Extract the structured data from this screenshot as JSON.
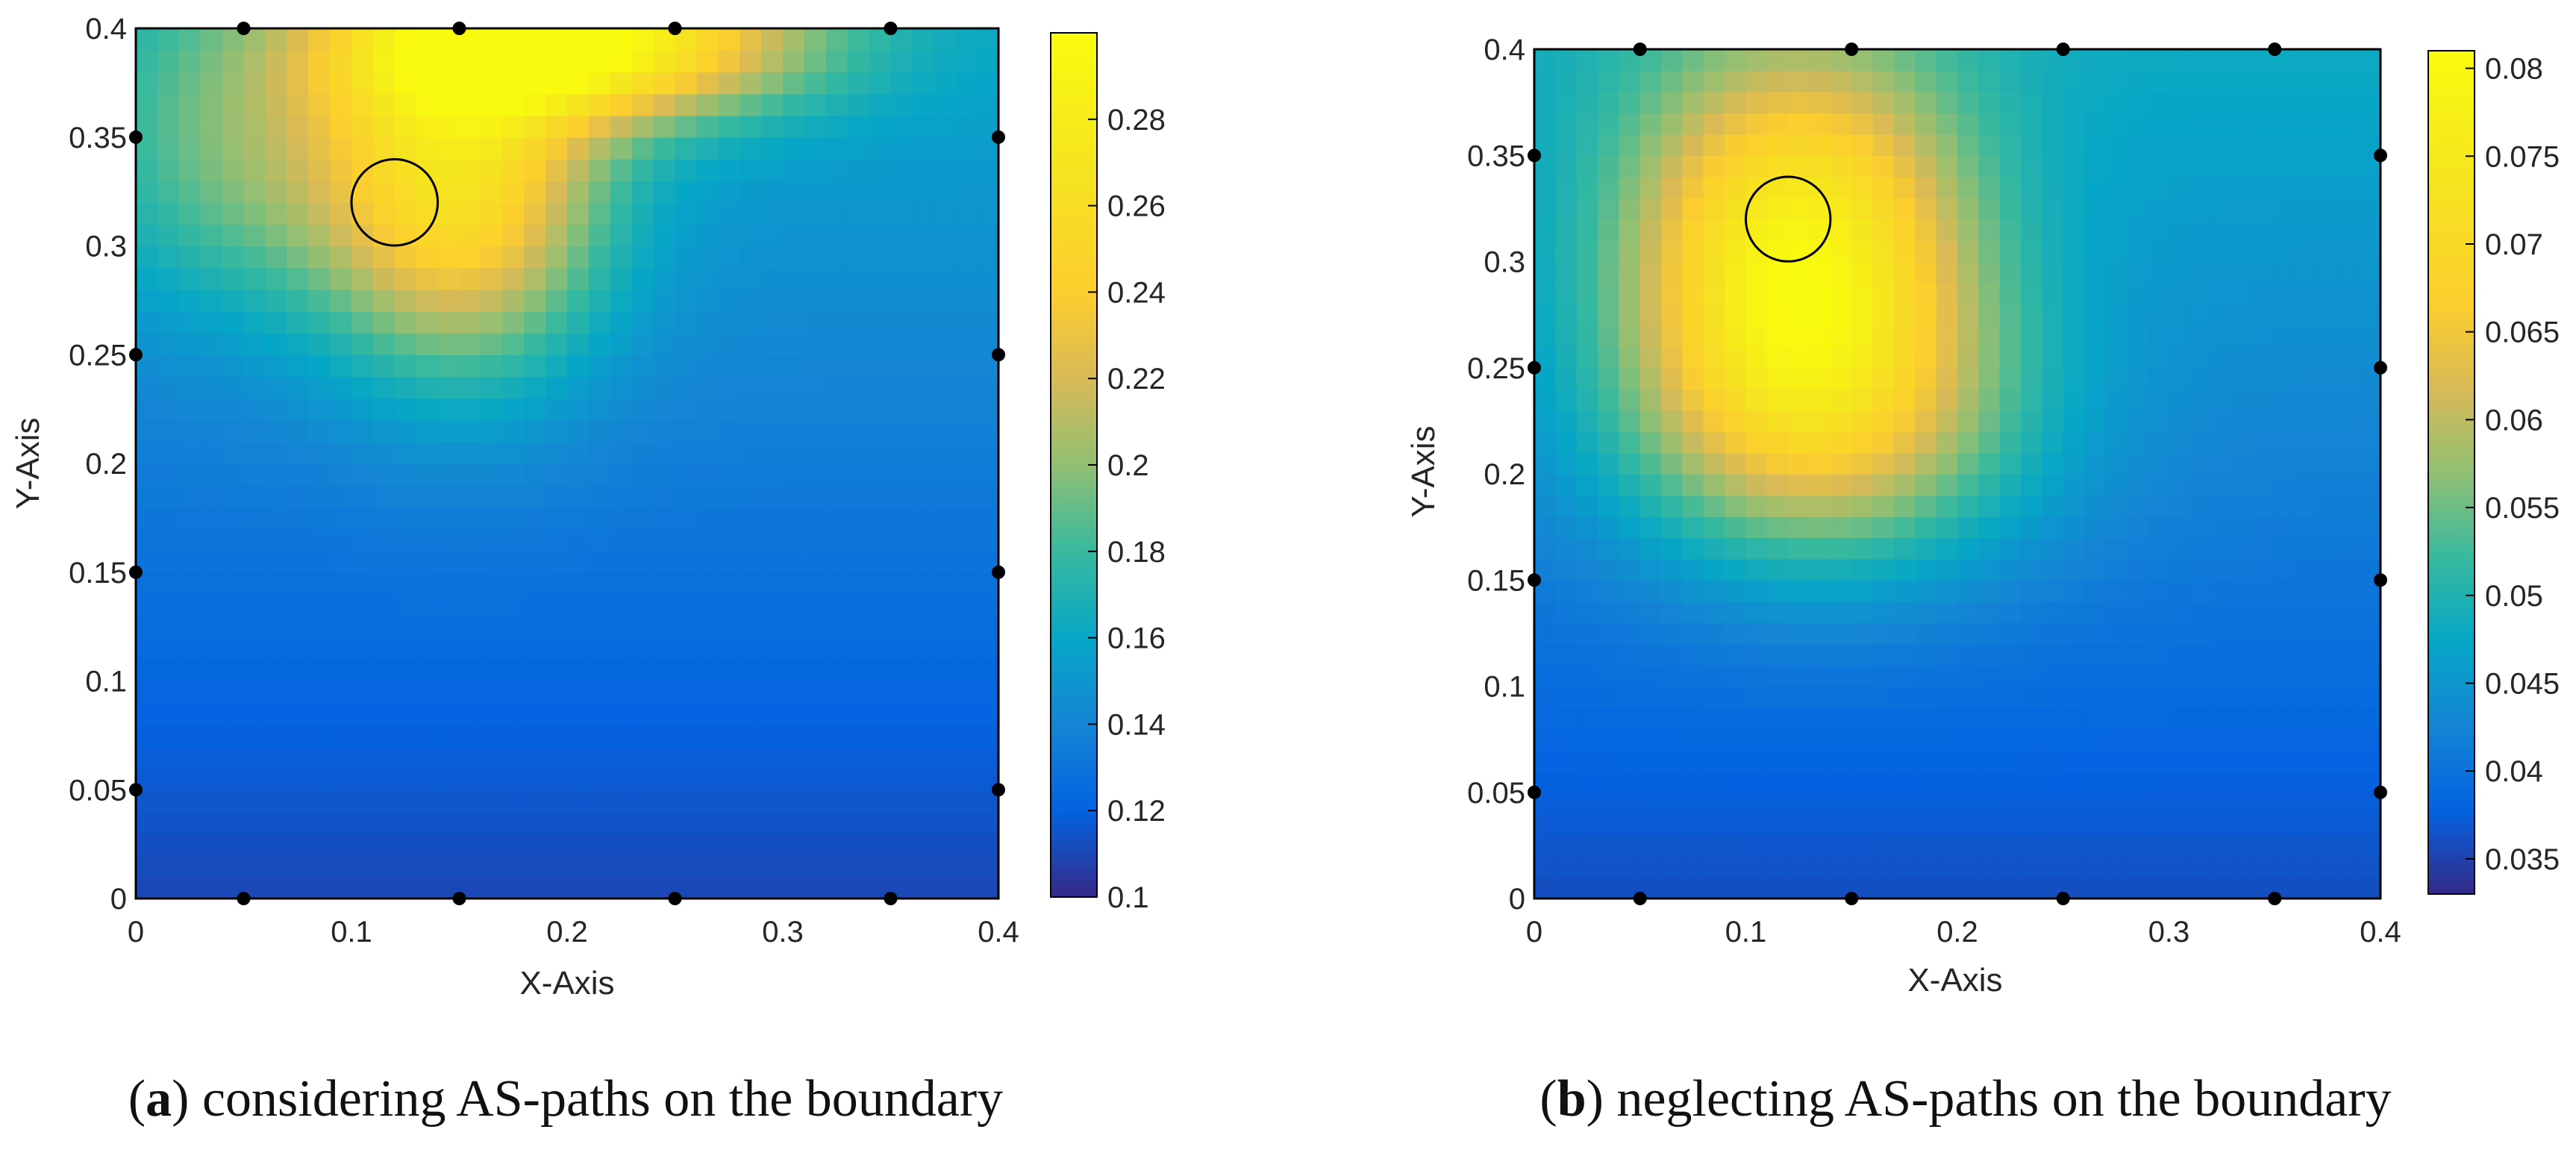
{
  "chart_data": [
    {
      "type": "heatmap",
      "caption_letter": "a",
      "caption_text": "considering AS-paths on the boundary",
      "xlabel": "X-Axis",
      "ylabel": "Y-Axis",
      "xlim": [
        0,
        0.4
      ],
      "ylim": [
        0,
        0.4
      ],
      "xticks": [
        0,
        0.1,
        0.2,
        0.3,
        0.4
      ],
      "xtick_labels": [
        "0",
        "0.1",
        "0.2",
        "0.3",
        "0.4"
      ],
      "yticks": [
        0,
        0.05,
        0.1,
        0.15,
        0.2,
        0.25,
        0.3,
        0.35,
        0.4
      ],
      "ytick_labels": [
        "0",
        "0.05",
        "0.1",
        "0.15",
        "0.2",
        "0.25",
        "0.3",
        "0.35",
        "0.4"
      ],
      "colorbar": {
        "range": [
          0.1,
          0.3
        ],
        "ticks": [
          0.1,
          0.12,
          0.14,
          0.16,
          0.18,
          0.2,
          0.22,
          0.24,
          0.26,
          0.28
        ],
        "tick_labels": [
          "0.1",
          "0.12",
          "0.14",
          "0.16",
          "0.18",
          "0.2",
          "0.22",
          "0.24",
          "0.26",
          "0.28"
        ]
      },
      "sensors": [
        [
          0.05,
          0.4
        ],
        [
          0.15,
          0.4
        ],
        [
          0.25,
          0.4
        ],
        [
          0.35,
          0.4
        ],
        [
          0.05,
          0
        ],
        [
          0.15,
          0
        ],
        [
          0.25,
          0
        ],
        [
          0.35,
          0
        ],
        [
          0,
          0.05
        ],
        [
          0,
          0.15
        ],
        [
          0,
          0.25
        ],
        [
          0,
          0.35
        ],
        [
          0.4,
          0.05
        ],
        [
          0.4,
          0.15
        ],
        [
          0.4,
          0.25
        ],
        [
          0.4,
          0.35
        ]
      ],
      "circle": {
        "center": [
          0.12,
          0.32
        ],
        "radius": 0.02
      },
      "field": {
        "base": 0.16,
        "base_bottom_drop": 0.05,
        "min": 0.1,
        "max": 0.3,
        "hotspots": [
          {
            "x": 0.2,
            "y": 0.395,
            "peak": 0.3,
            "sx": 0.07,
            "sy": 0.025
          },
          {
            "x": 0.15,
            "y": 0.33,
            "peak": 0.27,
            "sx": 0.045,
            "sy": 0.06
          },
          {
            "x": 0.05,
            "y": 0.34,
            "peak": 0.2,
            "sx": 0.05,
            "sy": 0.05
          }
        ]
      }
    },
    {
      "type": "heatmap",
      "caption_letter": "b",
      "caption_text": "neglecting AS-paths on the boundary",
      "xlabel": "X-Axis",
      "ylabel": "Y-Axis",
      "xlim": [
        0,
        0.4
      ],
      "ylim": [
        0,
        0.4
      ],
      "xticks": [
        0,
        0.1,
        0.2,
        0.3,
        0.4
      ],
      "xtick_labels": [
        "0",
        "0.1",
        "0.2",
        "0.3",
        "0.4"
      ],
      "yticks": [
        0,
        0.05,
        0.1,
        0.15,
        0.2,
        0.25,
        0.3,
        0.35,
        0.4
      ],
      "ytick_labels": [
        "0",
        "0.05",
        "0.1",
        "0.15",
        "0.2",
        "0.25",
        "0.3",
        "0.35",
        "0.4"
      ],
      "colorbar": {
        "range": [
          0.033,
          0.081
        ],
        "ticks": [
          0.035,
          0.04,
          0.045,
          0.05,
          0.055,
          0.06,
          0.065,
          0.07,
          0.075,
          0.08
        ],
        "tick_labels": [
          "0.035",
          "0.04",
          "0.045",
          "0.05",
          "0.055",
          "0.06",
          "0.065",
          "0.07",
          "0.075",
          "0.08"
        ]
      },
      "sensors": [
        [
          0.05,
          0.4
        ],
        [
          0.15,
          0.4
        ],
        [
          0.25,
          0.4
        ],
        [
          0.35,
          0.4
        ],
        [
          0.05,
          0
        ],
        [
          0.15,
          0
        ],
        [
          0.25,
          0
        ],
        [
          0.35,
          0
        ],
        [
          0,
          0.05
        ],
        [
          0,
          0.15
        ],
        [
          0,
          0.25
        ],
        [
          0,
          0.35
        ],
        [
          0.4,
          0.05
        ],
        [
          0.4,
          0.15
        ],
        [
          0.4,
          0.25
        ],
        [
          0.4,
          0.35
        ]
      ],
      "circle": {
        "center": [
          0.12,
          0.32
        ],
        "radius": 0.02
      },
      "field": {
        "base": 0.048,
        "base_bottom_drop": 0.012,
        "min": 0.033,
        "max": 0.081,
        "hotspots": [
          {
            "x": 0.125,
            "y": 0.3,
            "peak": 0.08,
            "sx": 0.055,
            "sy": 0.065
          },
          {
            "x": 0.14,
            "y": 0.22,
            "peak": 0.062,
            "sx": 0.07,
            "sy": 0.05
          }
        ]
      }
    }
  ]
}
